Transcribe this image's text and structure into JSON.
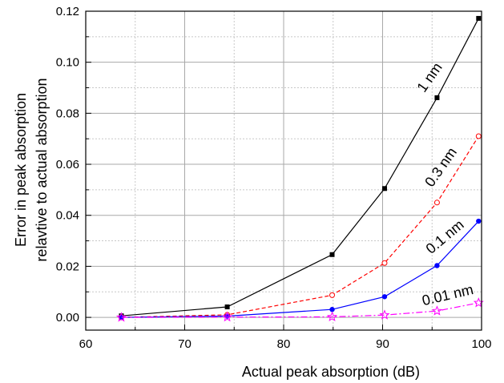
{
  "chart_data": {
    "type": "line",
    "title": "",
    "xlabel": "Actual peak absorption (dB)",
    "ylabel_lines": [
      "Error in peak absorption",
      "relavtive to actual absorption"
    ],
    "xlim": [
      60,
      100
    ],
    "ylim": [
      -0.005,
      0.12
    ],
    "x_ticks": [
      60,
      70,
      80,
      90,
      100
    ],
    "x_tick_labels": [
      "60",
      "70",
      "80",
      "90",
      "100"
    ],
    "y_ticks": [
      0.0,
      0.02,
      0.04,
      0.06,
      0.08,
      0.1,
      0.12
    ],
    "y_tick_labels": [
      "0.00",
      "0.02",
      "0.04",
      "0.06",
      "0.08",
      "0.10",
      "0.12"
    ],
    "grid": true,
    "series": [
      {
        "name": "1 nm",
        "color": "#000000",
        "line_style": "solid",
        "marker": "filled-square",
        "x": [
          63.6,
          74.3,
          84.9,
          90.2,
          95.5,
          99.7
        ],
        "y": [
          0.0006,
          0.0041,
          0.0246,
          0.0505,
          0.0861,
          0.1172
        ]
      },
      {
        "name": "0.3 nm",
        "color": "#ff0000",
        "line_style": "dashed",
        "marker": "open-circle",
        "x": [
          63.6,
          74.3,
          84.9,
          90.2,
          95.5,
          99.7
        ],
        "y": [
          0.0,
          0.001,
          0.0087,
          0.0213,
          0.045,
          0.071
        ]
      },
      {
        "name": "0.1 nm",
        "color": "#0000ff",
        "line_style": "solid",
        "marker": "filled-circle",
        "x": [
          63.6,
          74.3,
          84.9,
          90.2,
          95.5,
          99.7
        ],
        "y": [
          0.0,
          0.0005,
          0.0031,
          0.0081,
          0.0203,
          0.0377
        ]
      },
      {
        "name": "0.01 nm",
        "color": "#ff00ff",
        "line_style": "dashdot",
        "marker": "open-star",
        "x": [
          63.6,
          74.3,
          84.9,
          90.2,
          95.5,
          99.7
        ],
        "y": [
          0.0,
          0.0001,
          0.0002,
          0.0009,
          0.0025,
          0.0057
        ]
      }
    ],
    "series_label_text": [
      "1 nm",
      "0.3 nm",
      "0.1 nm",
      "0.01 nm"
    ]
  }
}
